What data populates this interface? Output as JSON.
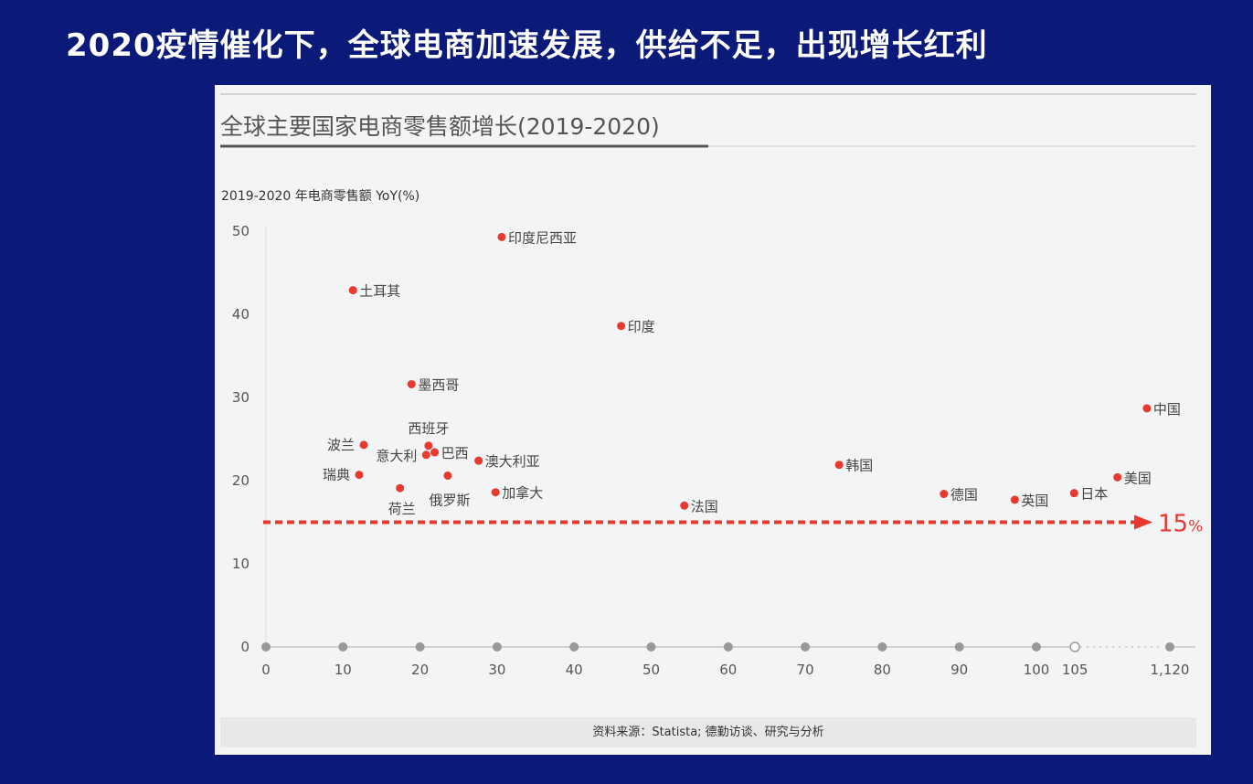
{
  "headline": "2020疫情催化下，全球电商加速发展，供给不足，出现增长红利",
  "chart_data": {
    "type": "scatter",
    "title": "全球主要国家电商零售额增长(2019-2020)",
    "ylabel": "2019-2020 年电商零售额 YoY(%)",
    "xlabel": "",
    "ylim": [
      0,
      50
    ],
    "yticks": [
      "0",
      "10",
      "20",
      "30",
      "40",
      "50"
    ],
    "xticks": [
      {
        "value": 0,
        "label": "0"
      },
      {
        "value": 10,
        "label": "10"
      },
      {
        "value": 20,
        "label": "20"
      },
      {
        "value": 30,
        "label": "30"
      },
      {
        "value": 40,
        "label": "40"
      },
      {
        "value": 50,
        "label": "50"
      },
      {
        "value": 60,
        "label": "60"
      },
      {
        "value": 70,
        "label": "70"
      },
      {
        "value": 80,
        "label": "80"
      },
      {
        "value": 90,
        "label": "90"
      },
      {
        "value": 100,
        "label": "100"
      },
      {
        "value": 105,
        "label": "105"
      },
      {
        "value": 1120,
        "label": "1,120"
      }
    ],
    "x_axis_break": [
      105,
      1120
    ],
    "grid": false,
    "point_color": "#e8392e",
    "points": [
      {
        "label": "印度尼西亚",
        "x": 30.6,
        "y": 49.3
      },
      {
        "label": "土耳其",
        "x": 11.3,
        "y": 42.9
      },
      {
        "label": "印度",
        "x": 46.1,
        "y": 38.6
      },
      {
        "label": "墨西哥",
        "x": 18.9,
        "y": 31.6
      },
      {
        "label": "中国",
        "x": 870,
        "y": 28.7
      },
      {
        "label": "波兰",
        "x": 12.7,
        "y": 24.3
      },
      {
        "label": "西班牙",
        "x": 21.1,
        "y": 24.2
      },
      {
        "label": "巴西",
        "x": 21.9,
        "y": 23.4
      },
      {
        "label": "意大利",
        "x": 20.8,
        "y": 23.1
      },
      {
        "label": "澳大利亚",
        "x": 27.6,
        "y": 22.4
      },
      {
        "label": "瑞典",
        "x": 12.1,
        "y": 20.7
      },
      {
        "label": "俄罗斯",
        "x": 23.6,
        "y": 20.6
      },
      {
        "label": "荷兰",
        "x": 17.4,
        "y": 19.1
      },
      {
        "label": "加拿大",
        "x": 29.8,
        "y": 18.6
      },
      {
        "label": "法国",
        "x": 54.3,
        "y": 17.0
      },
      {
        "label": "韩国",
        "x": 74.4,
        "y": 21.9
      },
      {
        "label": "德国",
        "x": 88.0,
        "y": 18.4
      },
      {
        "label": "英国",
        "x": 97.2,
        "y": 17.7
      },
      {
        "label": "日本",
        "x": 104.9,
        "y": 18.5
      },
      {
        "label": "美国",
        "x": 550,
        "y": 20.4
      }
    ],
    "reference_line": {
      "y": 15,
      "label": "15",
      "unit": "%"
    },
    "source": "资料来源：Statista; 德勤访谈、研究与分析"
  }
}
